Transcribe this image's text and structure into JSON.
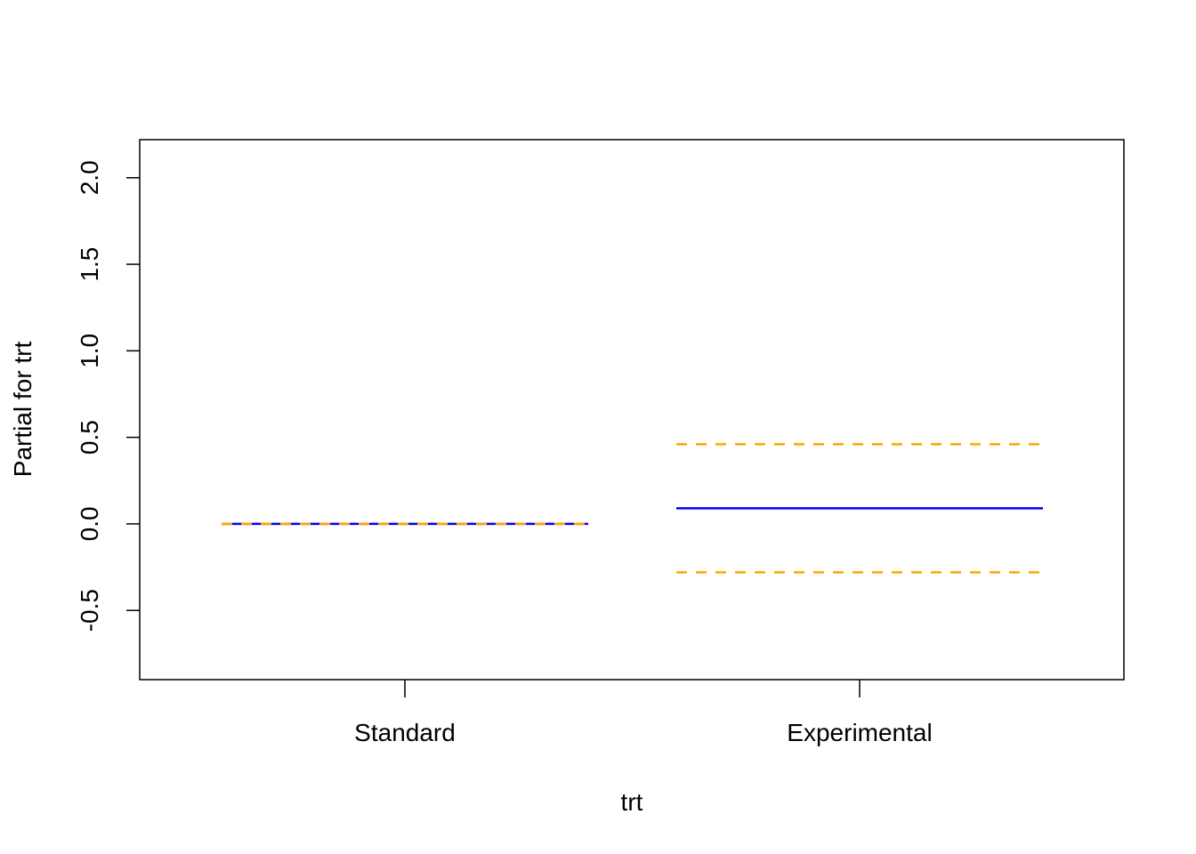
{
  "chart_data": {
    "type": "line",
    "title": "",
    "xlabel": "trt",
    "ylabel": "Partial for trt",
    "categories": [
      "Standard",
      "Experimental"
    ],
    "ylim": [
      -0.9,
      2.22
    ],
    "yticks": [
      -0.5,
      0.0,
      0.5,
      1.0,
      1.5,
      2.0
    ],
    "ytick_labels": [
      "-0.5",
      "0.0",
      "0.5",
      "1.0",
      "1.5",
      "2.0"
    ],
    "grid": false,
    "legend": "none",
    "series": [
      {
        "role": "estimate",
        "color": "#0000ff",
        "style": "solid",
        "values": [
          0.0,
          0.09
        ]
      },
      {
        "role": "upper",
        "color": "#ffa500",
        "style": "dashed",
        "values": [
          0.0,
          0.46
        ]
      },
      {
        "role": "lower",
        "color": "#ffa500",
        "style": "dashed",
        "values": [
          0.0,
          -0.28
        ]
      }
    ]
  }
}
